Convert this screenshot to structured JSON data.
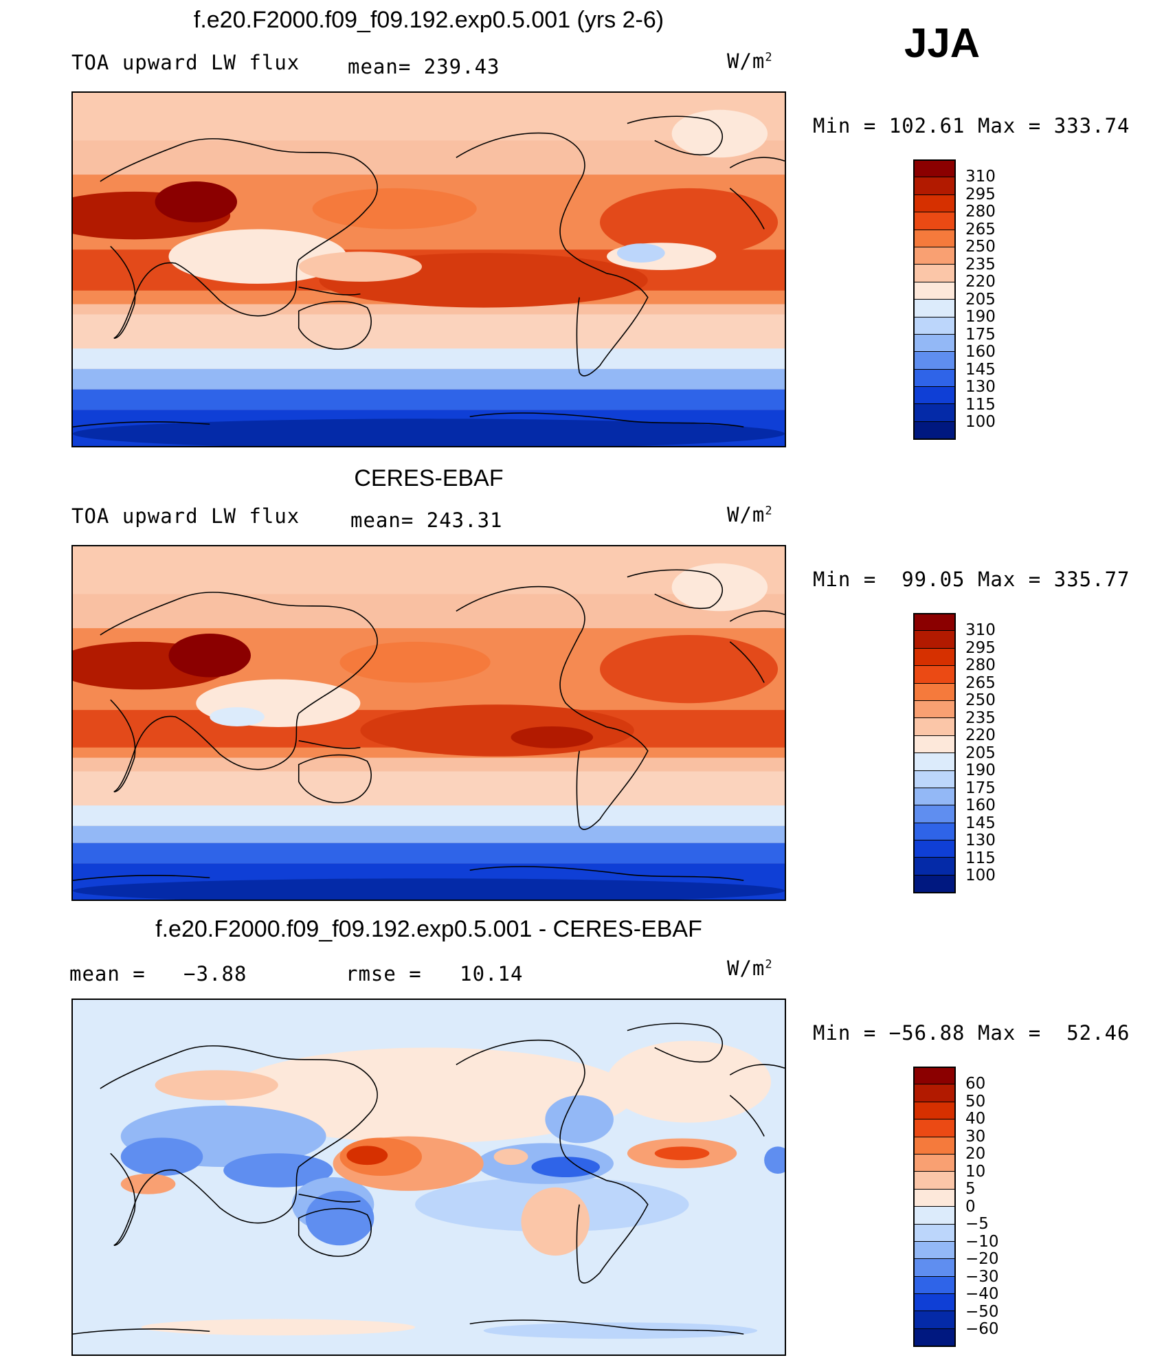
{
  "season": "JJA",
  "panels": [
    {
      "title": "f.e20.F2000.f09_f09.192.exp0.5.001 (yrs 2-6)",
      "left_label": "TOA upward LW flux",
      "mid_label": "mean= 239.43",
      "units_base": "W/m",
      "units_exp": "2",
      "minmax": "Min = 102.61 Max = 333.74",
      "colorbar": {
        "labels": [
          "310",
          "295",
          "280",
          "265",
          "250",
          "235",
          "220",
          "205",
          "190",
          "175",
          "160",
          "145",
          "130",
          "115",
          "100"
        ],
        "colors": [
          "#8b0000",
          "#b21a00",
          "#d63000",
          "#eb4a14",
          "#f57a3c",
          "#f9a072",
          "#fbc6a8",
          "#fde8da",
          "#dcebfb",
          "#bcd6fb",
          "#93b8f6",
          "#5f8ef0",
          "#2f64e8",
          "#0f3fd6",
          "#042aa8",
          "#001880"
        ]
      }
    },
    {
      "title": "CERES-EBAF",
      "left_label": "TOA upward LW flux",
      "mid_label": "mean= 243.31",
      "units_base": "W/m",
      "units_exp": "2",
      "minmax": "Min =  99.05 Max = 335.77",
      "colorbar": {
        "labels": [
          "310",
          "295",
          "280",
          "265",
          "250",
          "235",
          "220",
          "205",
          "190",
          "175",
          "160",
          "145",
          "130",
          "115",
          "100"
        ],
        "colors": [
          "#8b0000",
          "#b21a00",
          "#d63000",
          "#eb4a14",
          "#f57a3c",
          "#f9a072",
          "#fbc6a8",
          "#fde8da",
          "#dcebfb",
          "#bcd6fb",
          "#93b8f6",
          "#5f8ef0",
          "#2f64e8",
          "#0f3fd6",
          "#042aa8",
          "#001880"
        ]
      }
    },
    {
      "title": "f.e20.F2000.f09_f09.192.exp0.5.001 - CERES-EBAF",
      "left_label": "mean =   −3.88",
      "mid_label": "rmse =   10.14",
      "units_base": "W/m",
      "units_exp": "2",
      "minmax": "Min = −56.88 Max =  52.46",
      "colorbar": {
        "labels": [
          "60",
          "50",
          "40",
          "30",
          "20",
          "10",
          "5",
          "0",
          "−5",
          "−10",
          "−20",
          "−30",
          "−40",
          "−50",
          "−60"
        ],
        "colors": [
          "#8b0000",
          "#b21a00",
          "#d63000",
          "#eb4a14",
          "#f57a3c",
          "#f9a072",
          "#fbc6a8",
          "#fde8da",
          "#dcebfb",
          "#bcd6fb",
          "#93b8f6",
          "#5f8ef0",
          "#2f64e8",
          "#0f3fd6",
          "#042aa8",
          "#001880"
        ]
      }
    }
  ]
}
